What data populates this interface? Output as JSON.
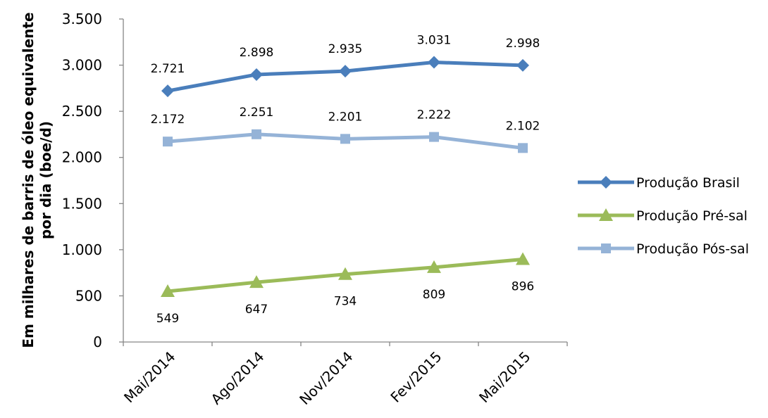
{
  "chart_data": {
    "type": "line",
    "title": "",
    "xlabel": "",
    "ylabel": "Em milhares de barris de óleo equivalente por dia (boe/d)",
    "ylabel_lines": [
      "Em milhares de barris de óleo equivalente",
      "por dia (boe/d)"
    ],
    "categories": [
      "Mai/2014",
      "Ago/2014",
      "Nov/2014",
      "Fev/2015",
      "Mai/2015"
    ],
    "ylim": [
      0,
      3500
    ],
    "yticks": [
      0,
      500,
      1000,
      1500,
      2000,
      2500,
      3000,
      3500
    ],
    "ytick_labels": [
      "0",
      "500",
      "1.000",
      "1.500",
      "2.000",
      "2.500",
      "3.000",
      "3.500"
    ],
    "grid": false,
    "legend_position": "right",
    "series": [
      {
        "name": "Produção Brasil",
        "values": [
          2721,
          2898,
          2935,
          3031,
          2998
        ],
        "labels": [
          "2.721",
          "2.898",
          "2.935",
          "3.031",
          "2.998"
        ],
        "color": "#4A7EBB",
        "marker": "diamond",
        "label_position": "above"
      },
      {
        "name": "Produção Pré-sal",
        "values": [
          549,
          647,
          734,
          809,
          896
        ],
        "labels": [
          "549",
          "647",
          "734",
          "809",
          "896"
        ],
        "color": "#9BBB59",
        "marker": "triangle",
        "label_position": "below"
      },
      {
        "name": "Produção Pós-sal",
        "values": [
          2172,
          2251,
          2201,
          2222,
          2102
        ],
        "labels": [
          "2.172",
          "2.251",
          "2.201",
          "2.222",
          "2.102"
        ],
        "color": "#95B3D7",
        "marker": "square",
        "label_position": "above"
      }
    ]
  }
}
